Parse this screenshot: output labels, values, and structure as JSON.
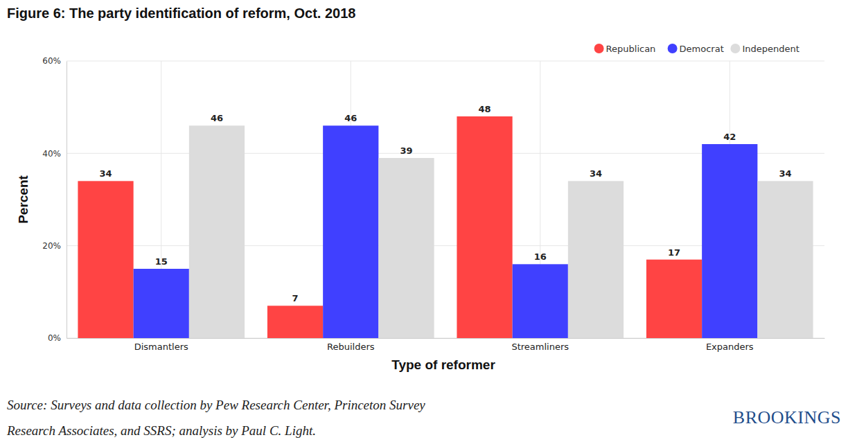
{
  "chart_data": {
    "type": "bar",
    "title": "Figure 6: The party identification of reform, Oct. 2018",
    "x_label": "Type of reformer",
    "y_label": "Percent",
    "categories": [
      "Dismantlers",
      "Rebuilders",
      "Streamliners",
      "Expanders"
    ],
    "series": [
      {
        "name": "Republican",
        "color": "#ff4444",
        "values": [
          34,
          7,
          48,
          17
        ]
      },
      {
        "name": "Democrat",
        "color": "#4040ff",
        "values": [
          15,
          46,
          16,
          42
        ]
      },
      {
        "name": "Independent",
        "color": "#dcdcdc",
        "values": [
          46,
          39,
          34,
          34
        ]
      }
    ],
    "ylim": [
      0,
      60
    ],
    "yticks": [
      {
        "value": 0,
        "label": "0%"
      },
      {
        "value": 20,
        "label": "20%"
      },
      {
        "value": 40,
        "label": "40%"
      },
      {
        "value": 60,
        "label": "60%"
      }
    ],
    "grid": true,
    "legend": "top-right",
    "data_labels": true,
    "source": [
      "Source: Surveys and data collection by Pew Research Center, Princeton Survey",
      "Research Associates, and SSRS; analysis by Paul C. Light."
    ],
    "credit": "BROOKINGS"
  }
}
